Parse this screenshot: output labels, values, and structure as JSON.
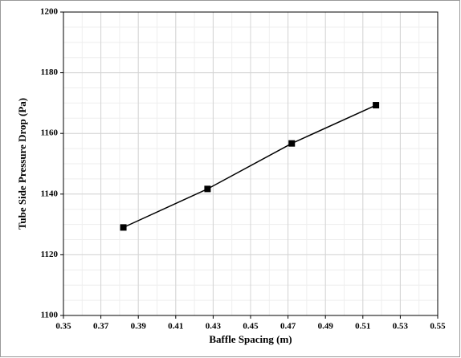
{
  "chart_data": {
    "type": "line",
    "x_label": "Baffle Spacing (m)",
    "y_label": "Tube Side Pressure Drop (Pa)",
    "series": [
      {
        "name": "Tube Side Pressure Drop",
        "color": "#000000",
        "x": [
          0.382,
          0.427,
          0.472,
          0.517
        ],
        "values": [
          1129,
          1141.7,
          1156.7,
          1169.3
        ]
      }
    ],
    "xlim": [
      0.35,
      0.55
    ],
    "xticks": [
      0.35,
      0.37,
      0.39,
      0.41,
      0.43,
      0.45,
      0.47,
      0.49,
      0.51,
      0.53,
      0.55
    ],
    "ylim": [
      1100,
      1200
    ],
    "yticks": [
      1100,
      1120,
      1140,
      1160,
      1180,
      1200
    ],
    "grid": true,
    "minor_grid": true,
    "marker": "square"
  }
}
